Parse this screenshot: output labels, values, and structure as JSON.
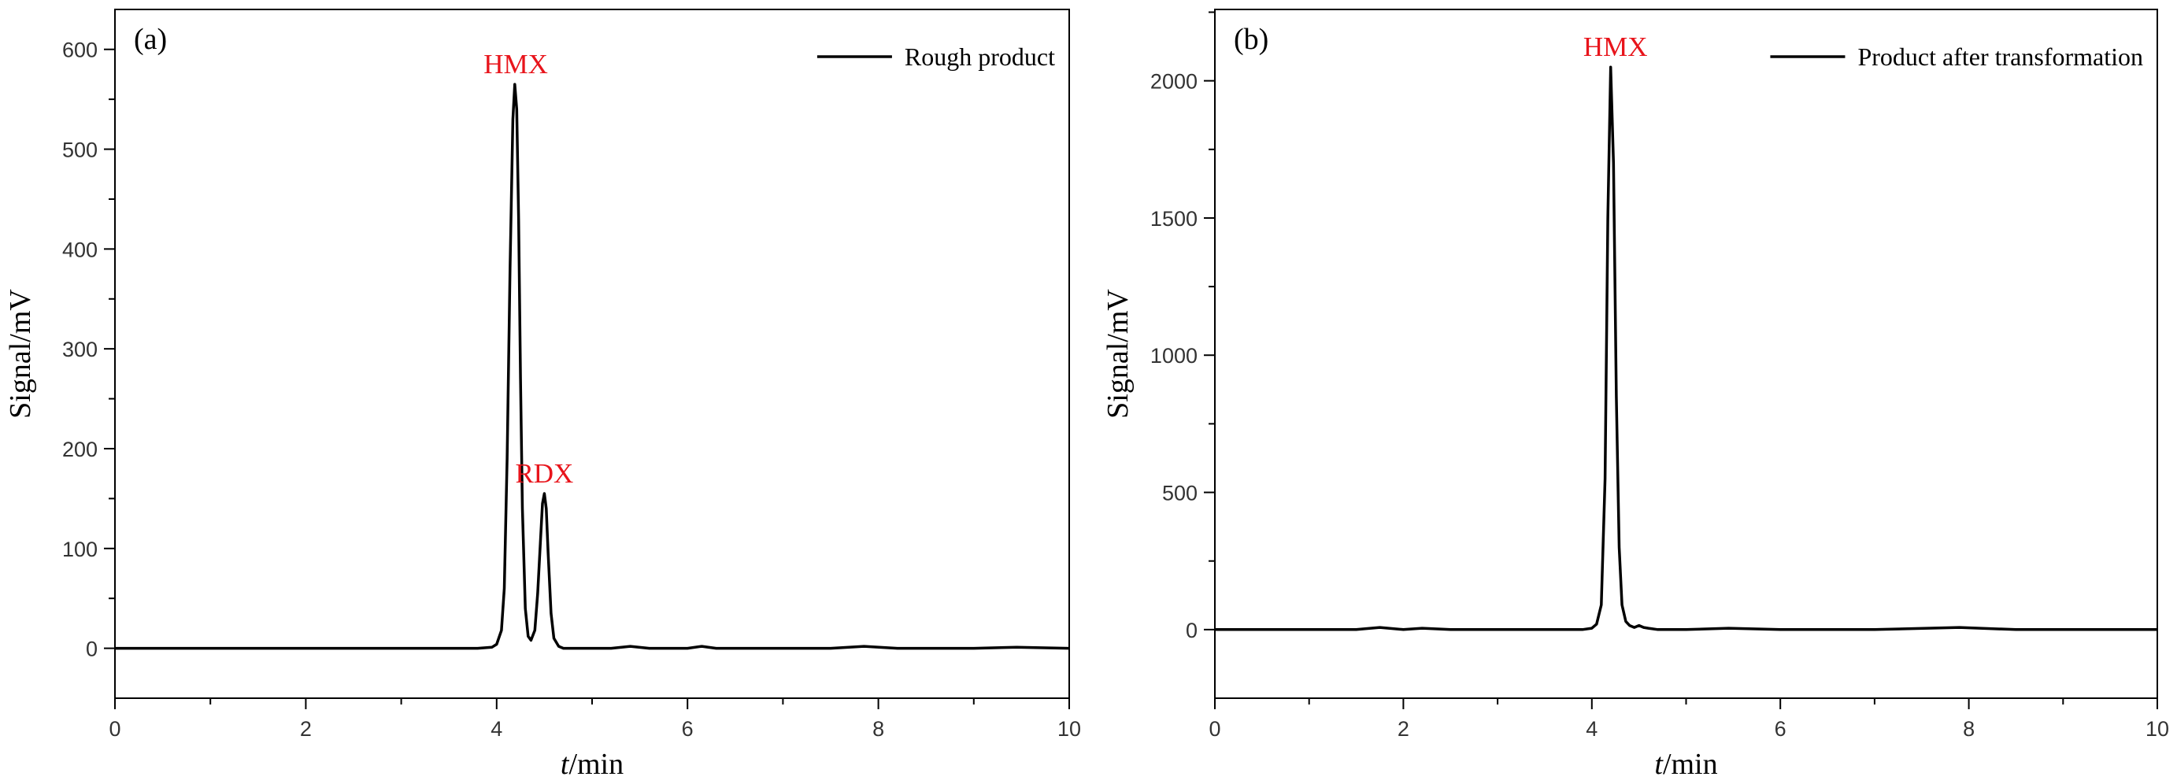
{
  "colors": {
    "line": "#000000",
    "axis": "#000000",
    "annotation": "#e8141b",
    "background": "#ffffff"
  },
  "chart_data": [
    {
      "type": "line",
      "panel_label": "(a)",
      "xlabel": "t/min",
      "xlabel_italic_part": "t",
      "xlabel_rest": "/min",
      "ylabel": "Signal/mV",
      "xlim": [
        0,
        10
      ],
      "ylim": [
        -50,
        640
      ],
      "x_ticks": [
        0,
        2,
        4,
        6,
        8,
        10
      ],
      "x_tick_labels": [
        "0",
        "2",
        "4",
        "6",
        "8",
        "10"
      ],
      "y_ticks": [
        0,
        100,
        200,
        300,
        400,
        500,
        600
      ],
      "y_tick_labels": [
        "0",
        "100",
        "200",
        "300",
        "400",
        "500",
        "600"
      ],
      "legend": {
        "position": "top-right",
        "entries": [
          "Rough product"
        ]
      },
      "series": [
        {
          "name": "Rough product",
          "x": [
            0,
            0.5,
            1.0,
            1.5,
            2.0,
            2.5,
            3.0,
            3.5,
            3.8,
            3.95,
            4.0,
            4.05,
            4.08,
            4.11,
            4.14,
            4.17,
            4.19,
            4.21,
            4.23,
            4.25,
            4.27,
            4.3,
            4.33,
            4.36,
            4.4,
            4.43,
            4.46,
            4.48,
            4.5,
            4.52,
            4.54,
            4.57,
            4.6,
            4.65,
            4.7,
            4.8,
            5.0,
            5.2,
            5.4,
            5.6,
            5.8,
            6.0,
            6.15,
            6.3,
            6.6,
            7.0,
            7.5,
            7.85,
            8.2,
            8.6,
            9.0,
            9.45,
            10.0
          ],
          "y": [
            0,
            0,
            0,
            0,
            0,
            0,
            0,
            0,
            0,
            1,
            4,
            18,
            60,
            190,
            380,
            530,
            565,
            540,
            430,
            270,
            140,
            40,
            12,
            8,
            18,
            55,
            110,
            145,
            155,
            140,
            95,
            35,
            10,
            2,
            0,
            0,
            0,
            0,
            2,
            0,
            0,
            0,
            2,
            0,
            0,
            0,
            0,
            2,
            0,
            0,
            0,
            1,
            0
          ]
        }
      ],
      "annotations": [
        {
          "text": "HMX",
          "x": 4.2,
          "y": 565
        },
        {
          "text": "RDX",
          "x": 4.5,
          "y": 155
        }
      ]
    },
    {
      "type": "line",
      "panel_label": "(b)",
      "xlabel": "t/min",
      "xlabel_italic_part": "t",
      "xlabel_rest": "/min",
      "ylabel": "Signal/mV",
      "xlim": [
        0,
        10
      ],
      "ylim": [
        -250,
        2260
      ],
      "x_ticks": [
        0,
        2,
        4,
        6,
        8,
        10
      ],
      "x_tick_labels": [
        "0",
        "2",
        "4",
        "6",
        "8",
        "10"
      ],
      "y_ticks": [
        0,
        500,
        1000,
        1500,
        2000
      ],
      "y_tick_labels": [
        "0",
        "500",
        "1000",
        "1500",
        "2000"
      ],
      "legend": {
        "position": "top-right",
        "entries": [
          "Product after transformation"
        ]
      },
      "series": [
        {
          "name": "Product after transformation",
          "x": [
            0,
            0.5,
            1.0,
            1.5,
            1.75,
            2.0,
            2.2,
            2.5,
            3.0,
            3.5,
            3.9,
            4.0,
            4.05,
            4.1,
            4.14,
            4.17,
            4.2,
            4.23,
            4.26,
            4.29,
            4.32,
            4.36,
            4.4,
            4.45,
            4.5,
            4.55,
            4.6,
            4.7,
            5.0,
            5.45,
            6.0,
            7.0,
            7.9,
            8.5,
            9.0,
            10.0
          ],
          "y": [
            0,
            0,
            0,
            0,
            8,
            0,
            5,
            0,
            0,
            0,
            0,
            5,
            20,
            90,
            550,
            1500,
            2050,
            1700,
            850,
            300,
            90,
            30,
            15,
            8,
            15,
            8,
            5,
            0,
            0,
            5,
            0,
            0,
            8,
            0,
            0,
            0
          ]
        }
      ],
      "annotations": [
        {
          "text": "HMX",
          "x": 4.25,
          "y": 2050
        }
      ]
    }
  ]
}
